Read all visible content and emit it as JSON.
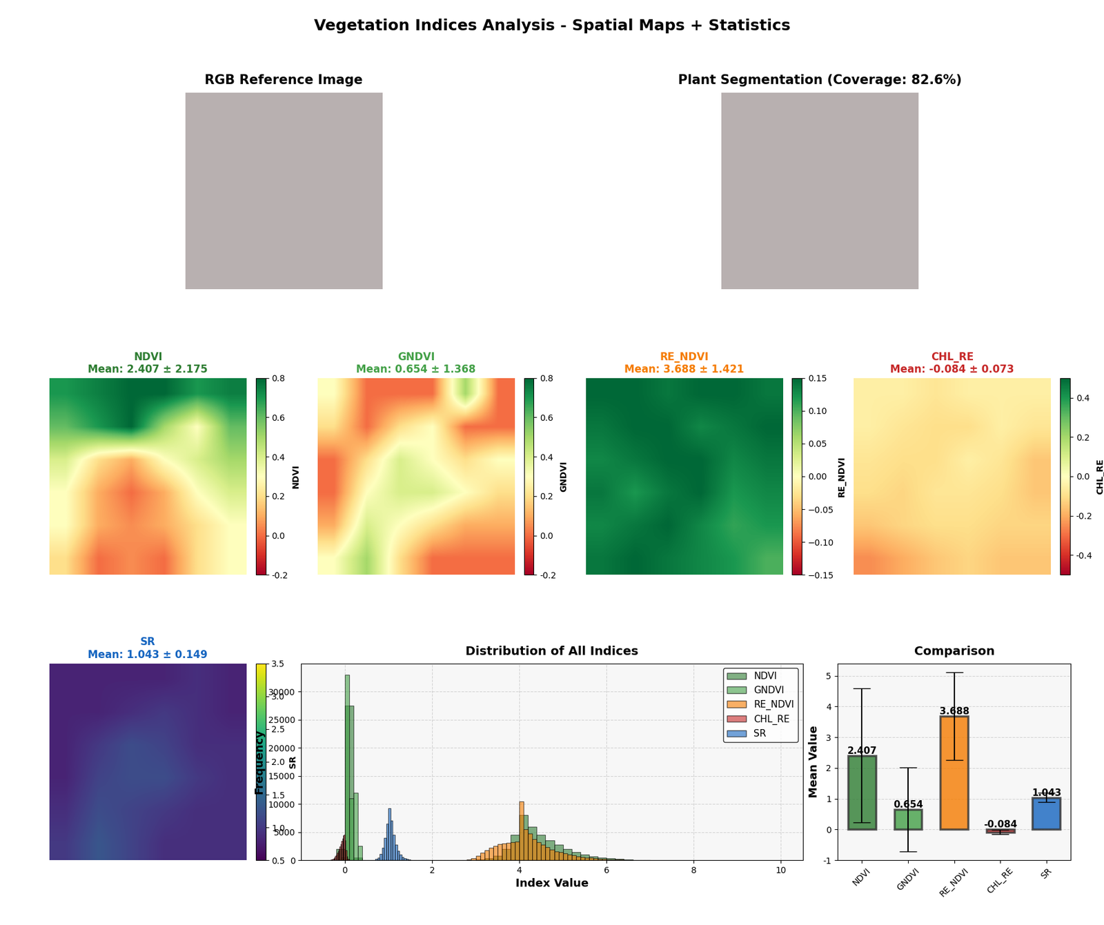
{
  "title": "Vegetation Indices Analysis - Spatial Maps + Statistics",
  "chart_data": [
    {
      "type": "image",
      "title": "RGB Reference Image",
      "tick_labels": false
    },
    {
      "type": "image",
      "title": "Plant Segmentation (Coverage: 82.6%)",
      "tick_labels": false
    },
    {
      "type": "heatmap",
      "title": "NDVI\nMean: 2.407 ± 2.175",
      "title_color": "#2e7d32",
      "color": "RdYlGn",
      "colorbar_label": "NDVI",
      "color_range": [
        -0.2,
        0.8
      ],
      "color_ticks": [
        -0.2,
        0.0,
        0.2,
        0.4,
        0.6,
        0.8
      ],
      "tick_labels": false,
      "cells": [
        [
          0.7,
          0.75,
          0.8,
          0.8,
          0.7,
          0.75
        ],
        [
          0.6,
          0.7,
          0.8,
          0.5,
          0.3,
          0.6
        ],
        [
          0.4,
          0.2,
          0.1,
          0.3,
          0.4,
          0.5
        ],
        [
          0.3,
          0.1,
          0.0,
          0.1,
          0.3,
          0.4
        ],
        [
          0.3,
          0.1,
          0.05,
          0.1,
          0.2,
          0.3
        ],
        [
          0.2,
          0.0,
          0.05,
          0.0,
          0.2,
          0.3
        ]
      ]
    },
    {
      "type": "heatmap",
      "title": "GNDVI\nMean: 0.654 ± 1.368",
      "title_color": "#43a047",
      "color": "RdYlGn",
      "colorbar_label": "GNDVI",
      "color_range": [
        -0.2,
        0.8
      ],
      "color_ticks": [
        -0.2,
        0.0,
        0.2,
        0.4,
        0.6,
        0.8
      ],
      "tick_labels": false,
      "cells": [
        [
          0.3,
          0.0,
          0.0,
          0.0,
          0.5,
          0.0
        ],
        [
          0.2,
          0.0,
          0.2,
          0.3,
          0.0,
          0.0
        ],
        [
          0.0,
          0.2,
          0.4,
          0.3,
          0.2,
          0.3
        ],
        [
          0.0,
          0.3,
          0.4,
          0.4,
          0.3,
          0.2
        ],
        [
          0.1,
          0.4,
          0.3,
          0.2,
          0.1,
          0.1
        ],
        [
          0.3,
          0.5,
          0.2,
          0.0,
          0.0,
          0.0
        ]
      ]
    },
    {
      "type": "heatmap",
      "title": "RE_NDVI\nMean: 3.688 ± 1.421",
      "title_color": "#f57c00",
      "color": "RdYlGn",
      "colorbar_label": "RE_NDVI",
      "color_range": [
        -0.15,
        0.15
      ],
      "color_ticks": [
        {
          "value": -0.15,
          "label": "−0.15"
        },
        {
          "value": -0.1,
          "label": "−0.10"
        },
        {
          "value": -0.05,
          "label": "−0.05"
        },
        {
          "value": 0.0,
          "label": "0.00"
        },
        {
          "value": 0.05,
          "label": "0.05"
        },
        {
          "value": 0.1,
          "label": "0.10"
        },
        {
          "value": 0.15,
          "label": "0.15"
        }
      ],
      "tick_labels": false,
      "cells": [
        [
          0.15,
          0.15,
          0.14,
          0.15,
          0.15,
          0.14
        ],
        [
          0.14,
          0.15,
          0.15,
          0.13,
          0.14,
          0.15
        ],
        [
          0.13,
          0.14,
          0.15,
          0.15,
          0.13,
          0.14
        ],
        [
          0.14,
          0.12,
          0.14,
          0.15,
          0.12,
          0.13
        ],
        [
          0.13,
          0.14,
          0.15,
          0.13,
          0.11,
          0.12
        ],
        [
          0.14,
          0.15,
          0.14,
          0.13,
          0.12,
          0.1
        ]
      ]
    },
    {
      "type": "heatmap",
      "title": "CHL_RE\nMean: -0.084 ± 0.073",
      "title_color": "#c62828",
      "color": "RdYlGn",
      "colorbar_label": "CHL_RE",
      "color_range": [
        -0.5,
        0.5
      ],
      "color_ticks": [
        -0.4,
        -0.2,
        0.0,
        0.2,
        0.4
      ],
      "tick_labels": false,
      "cells": [
        [
          -0.05,
          -0.05,
          -0.08,
          -0.05,
          -0.05,
          -0.05
        ],
        [
          -0.05,
          -0.08,
          -0.1,
          -0.1,
          -0.05,
          -0.08
        ],
        [
          -0.08,
          -0.1,
          -0.1,
          -0.05,
          -0.08,
          -0.15
        ],
        [
          -0.1,
          -0.12,
          -0.08,
          -0.08,
          -0.1,
          -0.15
        ],
        [
          -0.15,
          -0.12,
          -0.1,
          -0.1,
          -0.12,
          -0.12
        ],
        [
          -0.25,
          -0.2,
          -0.15,
          -0.12,
          -0.15,
          -0.15
        ]
      ]
    },
    {
      "type": "heatmap",
      "title": "SR\nMean: 1.043 ± 0.149",
      "title_color": "#1565c0",
      "color": "viridis",
      "colorbar_label": "SR",
      "color_range": [
        0.5,
        3.5
      ],
      "color_ticks": [
        0.5,
        1.0,
        1.5,
        2.0,
        2.5,
        3.0,
        3.5
      ],
      "tick_labels": false,
      "cells": [
        [
          0.8,
          0.8,
          0.8,
          0.8,
          0.9,
          0.8
        ],
        [
          0.8,
          0.8,
          0.9,
          1.0,
          0.9,
          0.8
        ],
        [
          0.8,
          1.0,
          1.2,
          1.1,
          0.9,
          0.9
        ],
        [
          0.8,
          1.1,
          1.2,
          1.2,
          1.0,
          0.9
        ],
        [
          0.9,
          1.2,
          1.1,
          1.0,
          0.9,
          0.9
        ],
        [
          1.0,
          1.3,
          1.1,
          0.9,
          0.9,
          0.9
        ]
      ]
    },
    {
      "type": "histogram",
      "title": "Distribution of All Indices",
      "x_label": "Index Value",
      "y_label": "Frequency",
      "xlim": [
        -1,
        10.5
      ],
      "xticks": [
        0,
        2,
        4,
        6,
        8,
        10
      ],
      "ylim": [
        0,
        35000
      ],
      "yticks": [
        0,
        5000,
        10000,
        15000,
        20000,
        25000,
        30000
      ],
      "grid": true,
      "legend": "upper right",
      "series": [
        {
          "name": "NDVI",
          "color": "#2e7d32",
          "bins": [
            -0.2,
            0.0,
            0.2,
            0.4,
            0.6,
            0.8,
            1.0,
            1.2,
            1.4,
            1.6,
            1.8,
            2.0,
            2.2,
            2.4,
            2.6,
            2.8,
            3.0,
            3.2,
            3.4,
            3.6,
            3.8,
            4.0,
            4.2,
            4.4,
            4.6,
            4.8,
            5.0,
            5.2,
            5.4,
            5.6,
            5.8,
            6.0,
            6.2,
            6.4,
            6.6,
            6.8,
            7.0
          ],
          "counts": [
            2000,
            27500,
            500,
            0,
            0,
            0,
            0,
            0,
            0,
            0,
            0,
            0,
            0,
            0,
            0,
            0,
            100,
            300,
            800,
            2000,
            4500,
            8000,
            6000,
            4500,
            3500,
            2800,
            2000,
            1500,
            1000,
            700,
            500,
            300,
            200,
            100,
            60,
            30
          ]
        },
        {
          "name": "GNDVI",
          "color": "#43a047",
          "bins": [
            -0.1,
            0.0,
            0.1,
            0.2,
            0.3,
            0.4
          ],
          "counts": [
            500,
            33000,
            11000,
            12000,
            2500
          ]
        },
        {
          "name": "RE_NDVI",
          "color": "#f57c00",
          "bins": [
            2.8,
            2.9,
            3.0,
            3.1,
            3.2,
            3.3,
            3.4,
            3.5,
            3.6,
            3.7,
            3.8,
            3.9,
            4.0,
            4.1,
            4.2,
            4.3,
            4.4,
            4.5,
            4.6,
            4.7,
            4.8,
            4.9,
            5.0,
            5.1,
            5.2,
            5.3,
            5.4,
            5.5,
            5.6,
            5.7,
            5.8,
            5.9,
            6.0,
            6.1,
            6.2,
            6.3,
            6.4,
            6.5,
            6.6,
            6.7,
            6.8,
            6.9,
            7.0
          ],
          "counts": [
            100,
            300,
            800,
            1300,
            1800,
            2200,
            2600,
            2900,
            3000,
            3100,
            3200,
            3300,
            10500,
            5500,
            4800,
            3800,
            3200,
            2800,
            2300,
            1900,
            1600,
            1400,
            1200,
            1000,
            850,
            700,
            600,
            500,
            420,
            350,
            280,
            220,
            170,
            130,
            100,
            80,
            60,
            45,
            35,
            25,
            15,
            10
          ]
        },
        {
          "name": "CHL_RE",
          "color": "#c62828",
          "bins": [
            -0.34,
            -0.32,
            -0.3,
            -0.28,
            -0.26,
            -0.24,
            -0.22,
            -0.2,
            -0.18,
            -0.16,
            -0.14,
            -0.12,
            -0.1,
            -0.08,
            -0.06,
            -0.04,
            -0.02,
            0.0,
            0.02,
            0.04,
            0.06,
            0.08,
            0.1,
            0.12
          ],
          "counts": [
            50,
            100,
            180,
            280,
            400,
            550,
            750,
            1000,
            1300,
            1650,
            2000,
            2450,
            2900,
            3400,
            3900,
            4400,
            4500,
            3500,
            1800,
            700,
            250,
            80,
            20
          ]
        },
        {
          "name": "SR",
          "color": "#1565c0",
          "bins": [
            0.7,
            0.75,
            0.8,
            0.85,
            0.9,
            0.95,
            1.0,
            1.05,
            1.1,
            1.15,
            1.2,
            1.25,
            1.3,
            1.35,
            1.4,
            1.45,
            1.5
          ],
          "counts": [
            200,
            500,
            1100,
            2200,
            4000,
            6500,
            9200,
            7000,
            4500,
            2800,
            1700,
            1000,
            600,
            350,
            200,
            100
          ]
        }
      ]
    },
    {
      "type": "bar",
      "title": "Comparison",
      "y_label": "Mean Value",
      "categories": [
        "NDVI",
        "GNDVI",
        "RE_NDVI",
        "CHL_RE",
        "SR"
      ],
      "values": [
        2.407,
        0.654,
        3.688,
        -0.084,
        1.043
      ],
      "errors": [
        2.175,
        1.368,
        1.421,
        0.073,
        0.149
      ],
      "colors": [
        "#2e7d32",
        "#43a047",
        "#f57c00",
        "#c62828",
        "#1565c0"
      ],
      "ylim": [
        -1,
        5.4
      ],
      "yticks": [
        -1,
        0,
        1,
        2,
        3,
        4,
        5
      ],
      "grid": true,
      "data_labels": true
    }
  ]
}
